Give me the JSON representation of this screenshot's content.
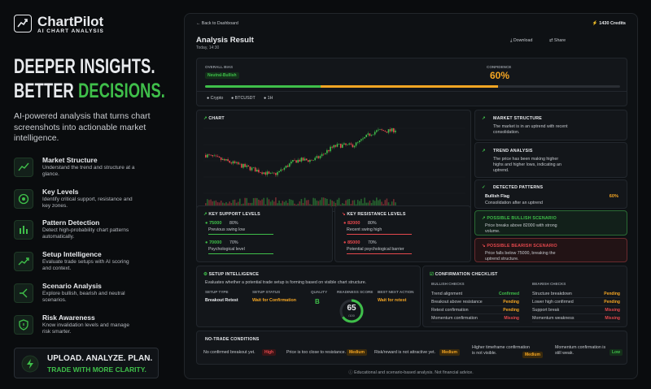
{
  "brand": {
    "name": "ChartPilot",
    "tagline": "AI CHART ANALYSIS"
  },
  "hero": {
    "line1": "DEEPER INSIGHTS.",
    "line2": "BETTER",
    "line2_highlight": "DECISIONS.",
    "description": "AI-powered analysis that turns chart screenshots into actionable market intelligence."
  },
  "features": [
    {
      "title": "Market Structure",
      "text": "Understand the trend and structure at a glance."
    },
    {
      "title": "Key Levels",
      "text": "Identify critical support, resistance and key zones."
    },
    {
      "title": "Pattern Detection",
      "text": "Detect high-probability chart patterns automatically."
    },
    {
      "title": "Setup Intelligence",
      "text": "Evaluate trade setups with AI scoring and context."
    },
    {
      "title": "Scenario Analysis",
      "text": "Explore bullish, bearish and neutral scenarios."
    },
    {
      "title": "Risk Awareness",
      "text": "Know invalidation levels and manage risk smarter."
    }
  ],
  "cta": {
    "title": "UPLOAD. ANALYZE. PLAN.",
    "subtitle": "TRADE WITH MORE CLARITY."
  },
  "app": {
    "back": "Back to Dashboard",
    "credits": "1430 Credits",
    "title": "Analysis Result",
    "date": "Today, 14:30",
    "download": "Download",
    "share": "Share"
  },
  "bias": {
    "label": "OVERALL BIAS",
    "value": "Neutral-Bullish",
    "confidence_label": "CONFIDENCE",
    "confidence": "60%",
    "tags": [
      "Crypto",
      "BTCUSDT",
      "1H"
    ]
  },
  "chart": {
    "label": "CHART"
  },
  "market_structure": {
    "title": "MARKET STRUCTURE",
    "text": "The market is in an uptrend with recent consolidation."
  },
  "trend_analysis": {
    "title": "TREND ANALYSIS",
    "text": "The price has been making higher highs and higher lows, indicating an uptrend."
  },
  "patterns": {
    "title": "DETECTED PATTERNS",
    "name": "Bullish Flag",
    "text": "Consolidation after an uptrend",
    "confidence": "60%"
  },
  "scenarios": {
    "bullish": {
      "title": "POSSIBLE BULLISH SCENARIO",
      "text": "Price breaks above 82000 with strong volume."
    },
    "bearish": {
      "title": "POSSIBLE BEARISH SCENARIO",
      "text": "Price falls below 75000, breaking the uptrend structure."
    }
  },
  "support": {
    "title": "KEY SUPPORT LEVELS",
    "levels": [
      {
        "price": "75000",
        "strength": "80%",
        "label": "Previous swing low"
      },
      {
        "price": "70000",
        "strength": "70%",
        "label": "Psychological level"
      }
    ]
  },
  "resistance": {
    "title": "KEY RESISTANCE LEVELS",
    "levels": [
      {
        "price": "82000",
        "strength": "80%",
        "label": "Recent swing high"
      },
      {
        "price": "85000",
        "strength": "70%",
        "label": "Potential psychological barrier"
      }
    ]
  },
  "setup": {
    "title": "SETUP INTELLIGENCE",
    "text": "Evaluates whether a potential trade setup is forming based on visible chart structure.",
    "type_label": "SETUP TYPE",
    "type": "Breakout Retest",
    "status_label": "SETUP STATUS",
    "status": "Wait for Confirmation",
    "quality_label": "QUALITY",
    "quality": "B",
    "score_label": "READINESS SCORE",
    "score": "65",
    "score_max": "/100",
    "action_label": "BEST NEXT ACTION",
    "action": "Wait for retest"
  },
  "checklist": {
    "title": "CONFIRMATION CHECKLIST",
    "bullish": {
      "title": "BULLISH CHECKS",
      "items": [
        {
          "name": "Trend alignment",
          "status": "Confirmed"
        },
        {
          "name": "Breakout above resistance",
          "status": "Pending"
        },
        {
          "name": "Retest confirmation",
          "status": "Pending"
        },
        {
          "name": "Momentum confirmation",
          "status": "Missing"
        }
      ]
    },
    "bearish": {
      "title": "BEARISH CHECKS",
      "items": [
        {
          "name": "Structure breakdown",
          "status": "Pending"
        },
        {
          "name": "Lower high confirmed",
          "status": "Pending"
        },
        {
          "name": "Support break",
          "status": "Missing"
        },
        {
          "name": "Momentum weakness",
          "status": "Missing"
        }
      ]
    }
  },
  "no_trade": {
    "title": "NO-TRADE CONDITIONS",
    "items": [
      {
        "text": "No confirmed breakout yet.",
        "level": "High"
      },
      {
        "text": "Price is too close to resistance.",
        "level": "Medium"
      },
      {
        "text": "Risk/reward is not attractive yet.",
        "level": "Medium"
      },
      {
        "text": "Higher timeframe confirmation is not visible.",
        "level": "Medium"
      },
      {
        "text": "Momentum confirmation is still weak.",
        "level": "Low"
      }
    ]
  },
  "footer": "Educational and scenario-based analysis. Not financial advice."
}
